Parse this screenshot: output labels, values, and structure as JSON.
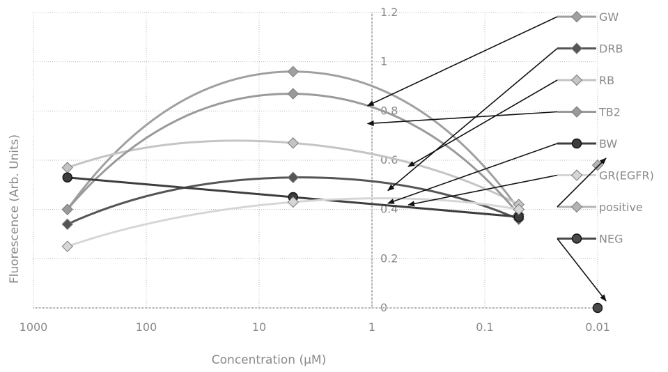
{
  "chart_data": {
    "type": "line",
    "title": "",
    "xlabel": "Concentration (µM)",
    "ylabel": "Fluorescence (Arb. Units)",
    "x_scale": "log-reversed",
    "xlim": [
      1000,
      0.01
    ],
    "ylim": [
      0,
      1.2
    ],
    "x_ticks": [
      1000,
      100,
      10,
      1,
      0.1,
      0.01
    ],
    "x_tick_labels": [
      "1000",
      "100",
      "10",
      "1",
      "0.1",
      "0.01"
    ],
    "y_ticks": [
      0,
      0.2,
      0.4,
      0.6,
      0.8,
      1,
      1.2
    ],
    "y_tick_labels": [
      "0",
      "0.2",
      "0.4",
      "0.6",
      "0.8",
      "1",
      "1.2"
    ],
    "grid": true,
    "legend_position": "right",
    "series": [
      {
        "name": "GW",
        "color": "#a0a0a0",
        "marker": "diamond",
        "x": [
          500,
          5,
          0.05
        ],
        "y": [
          0.4,
          0.96,
          0.4
        ]
      },
      {
        "name": "DRB",
        "color": "#555555",
        "marker": "diamond",
        "x": [
          500,
          5,
          0.05
        ],
        "y": [
          0.34,
          0.53,
          0.36
        ]
      },
      {
        "name": "RB",
        "color": "#c4c4c4",
        "marker": "diamond",
        "x": [
          500,
          5,
          0.05
        ],
        "y": [
          0.57,
          0.67,
          0.42
        ]
      },
      {
        "name": "TB2",
        "color": "#9a9a9a",
        "marker": "diamond",
        "x": [
          500,
          5,
          0.05
        ],
        "y": [
          0.4,
          0.87,
          0.38
        ]
      },
      {
        "name": "BW",
        "color": "#3d3d3d",
        "marker": "circle",
        "x": [
          500,
          5,
          0.05
        ],
        "y": [
          0.53,
          0.45,
          0.37
        ]
      },
      {
        "name": "GR(EGFR)",
        "color": "#d6d6d6",
        "marker": "diamond",
        "x": [
          500,
          5,
          0.05
        ],
        "y": [
          0.25,
          0.43,
          0.4
        ]
      },
      {
        "name": "positive",
        "color": "#b4b4b4",
        "marker": "diamond",
        "x": [
          0.01
        ],
        "y": [
          0.58
        ]
      },
      {
        "name": "NEG",
        "color": "#4a4a4a",
        "marker": "circle",
        "x": [
          0.01
        ],
        "y": [
          0
        ]
      }
    ]
  }
}
